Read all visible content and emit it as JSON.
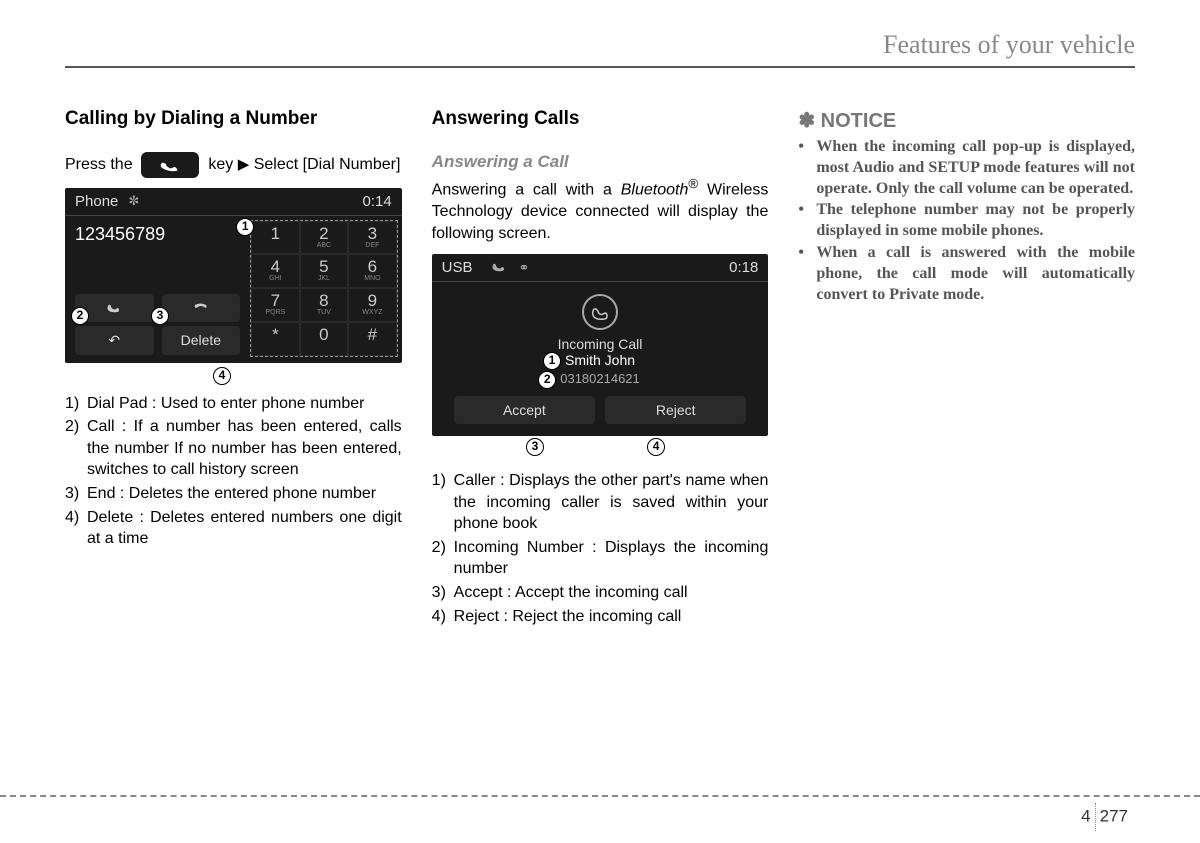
{
  "header": "Features of your vehicle",
  "col1": {
    "title": "Calling by Dialing a Number",
    "instr_pre": "Press the",
    "instr_key": "key",
    "instr_post": "Select [Dial Number]",
    "screen": {
      "topLabel": "Phone",
      "time": "0:14",
      "dialed": "123456789",
      "deleteLabel": "Delete",
      "keys": [
        {
          "n": "1",
          "s": ""
        },
        {
          "n": "2",
          "s": "ABC"
        },
        {
          "n": "3",
          "s": "DEF"
        },
        {
          "n": "4",
          "s": "GHI"
        },
        {
          "n": "5",
          "s": "JKL"
        },
        {
          "n": "6",
          "s": "MNO"
        },
        {
          "n": "7",
          "s": "PQRS"
        },
        {
          "n": "8",
          "s": "TUV"
        },
        {
          "n": "9",
          "s": "WXYZ"
        },
        {
          "n": "*",
          "s": ""
        },
        {
          "n": "0",
          "s": ""
        },
        {
          "n": "#",
          "s": ""
        }
      ]
    },
    "list": [
      "Dial Pad : Used to enter phone number",
      "Call : If a number has been entered, calls the number If no number has been entered, switches to call history screen",
      "End : Deletes the entered phone number",
      "Delete : Deletes entered numbers one digit at a time"
    ]
  },
  "col2": {
    "title": "Answering Calls",
    "subhead": "Answering a Call",
    "para_a": "Answering a call with a ",
    "para_bt": "Bluetooth",
    "para_b": " Wireless Technology device connected will display the following screen.",
    "screen": {
      "topLabel": "USB",
      "time": "0:18",
      "incomingTitle": "Incoming Call",
      "callerName": "Smith John",
      "callerNum": "03180214621",
      "accept": "Accept",
      "reject": "Reject"
    },
    "list": [
      "Caller : Displays the other part's name when the incoming caller is saved within your phone book",
      "Incoming Number : Displays the incoming number",
      "Accept : Accept the incoming call",
      "Reject : Reject the incoming call"
    ]
  },
  "col3": {
    "noticeSymbol": "✽",
    "noticeLabel": "NOTICE",
    "bullets": [
      "When the incoming call pop-up is displayed, most Audio and SETUP mode features will not operate. Only the call volume can be operated.",
      "The telephone number may not be properly displayed in some mobile phones.",
      "When a call is answered with the mobile phone, the call mode will automatically convert to Private mode."
    ]
  },
  "page": {
    "chapter": "4",
    "num": "277"
  }
}
